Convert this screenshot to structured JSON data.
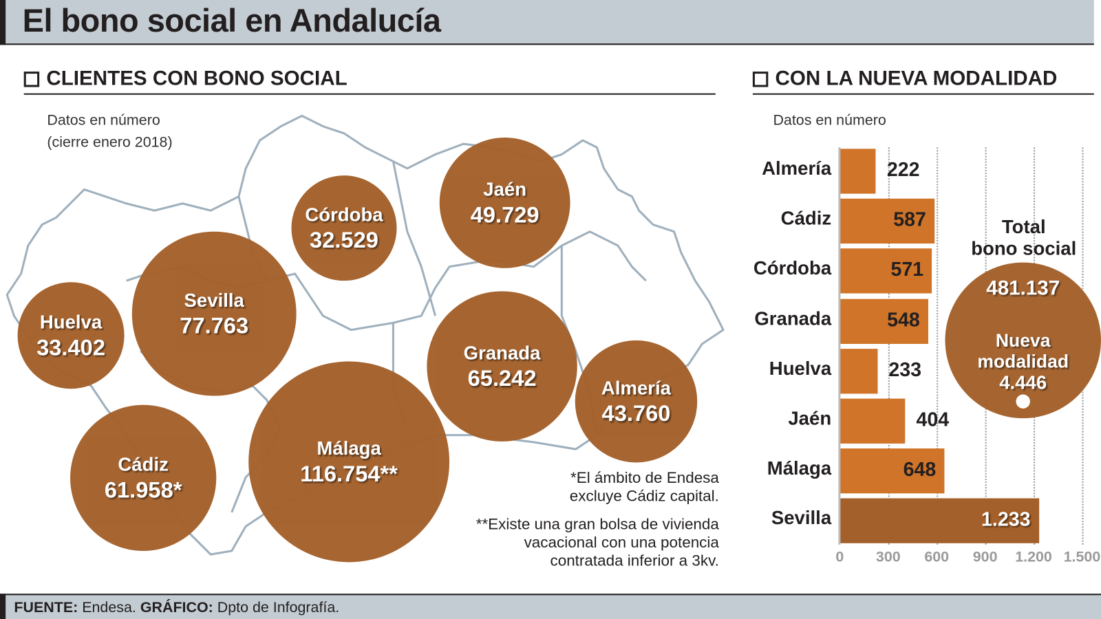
{
  "title": "El bono social en Andalucía",
  "left": {
    "heading": "CLIENTES CON BONO SOCIAL",
    "note_line1": "Datos en número",
    "note_line2": "(cierre enero 2018)",
    "footnote1_line1": "*El ámbito de Endesa",
    "footnote1_line2": "excluye Cádiz capital.",
    "footnote2_line1": "**Existe una gran bolsa de vivienda",
    "footnote2_line2": "vacacional con una potencia",
    "footnote2_line3": "contratada inferior a 3kv."
  },
  "right": {
    "heading": "CON LA NUEVA MODALIDAD",
    "note": "Datos en número",
    "total_label_line1": "Total",
    "total_label_line2": "bono social",
    "total_value": "481.137",
    "new_label_line1": "Nueva",
    "new_label_line2": "modalidad",
    "new_value": "4.446"
  },
  "footer": {
    "source_label": "FUENTE:",
    "source": "Endesa.",
    "graphic_label": "GRÁFICO:",
    "graphic": "Dpto de Infografía."
  },
  "colors": {
    "bubble": "#a4602a",
    "bar": "#cf7428",
    "bar_highlight": "#a4602a",
    "header_bg": "#c3ccd3",
    "map_outline": "#9fb0bd"
  },
  "chart_data": [
    {
      "type": "bubble-map",
      "items": [
        {
          "name": "Huelva",
          "value": 33402,
          "label": "33.402"
        },
        {
          "name": "Sevilla",
          "value": 77763,
          "label": "77.763"
        },
        {
          "name": "Córdoba",
          "value": 32529,
          "label": "32.529"
        },
        {
          "name": "Jaén",
          "value": 49729,
          "label": "49.729"
        },
        {
          "name": "Granada",
          "value": 65242,
          "label": "65.242"
        },
        {
          "name": "Almería",
          "value": 43760,
          "label": "43.760"
        },
        {
          "name": "Cádiz",
          "value": 61958,
          "label": "61.958*"
        },
        {
          "name": "Málaga",
          "value": 116754,
          "label": "116.754**"
        }
      ]
    },
    {
      "type": "bar",
      "orientation": "horizontal",
      "categories": [
        "Almería",
        "Cádiz",
        "Córdoba",
        "Granada",
        "Huelva",
        "Jaén",
        "Málaga",
        "Sevilla"
      ],
      "values": [
        222,
        587,
        571,
        548,
        233,
        404,
        648,
        1233
      ],
      "value_labels": [
        "222",
        "587",
        "571",
        "548",
        "233",
        "404",
        "648",
        "1.233"
      ],
      "xlim": [
        0,
        1500
      ],
      "xticks": [
        "0",
        "300",
        "600",
        "900",
        "1.200",
        "1.500"
      ],
      "grid": true
    }
  ]
}
